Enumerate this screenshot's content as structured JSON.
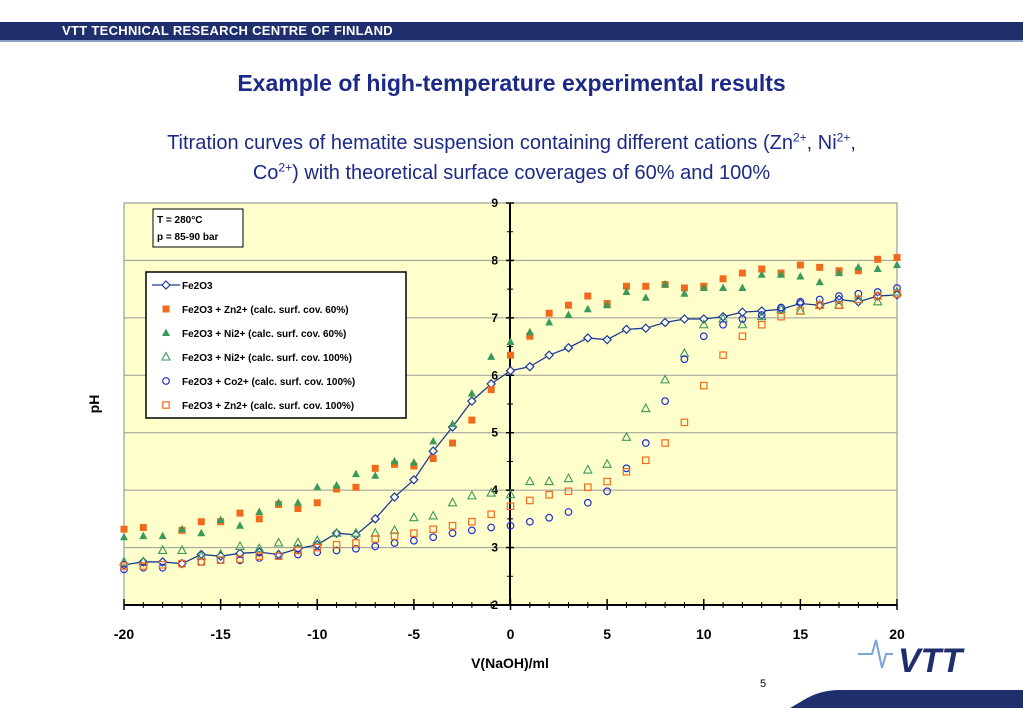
{
  "header": {
    "organization": "VTT TECHNICAL RESEARCH CENTRE OF FINLAND"
  },
  "slide": {
    "title": "Example of high-temperature experimental results",
    "subtitle_parts": [
      "Titration curves of hematite suspension containing different cations (Zn",
      "2+",
      ", Ni",
      "2+",
      ",",
      "Co",
      "2+",
      ") with theoretical  surface coverages of 60% and 100%"
    ],
    "page_number": "5",
    "logo_text": "VTT"
  },
  "chart_data": {
    "type": "scatter",
    "xlabel": "V(NaOH)/ml",
    "ylabel": "pH",
    "xlim": [
      -20,
      20
    ],
    "ylim": [
      2,
      9
    ],
    "xticks": [
      "-20",
      "-15",
      "-10",
      "-5",
      "0",
      "5",
      "10",
      "15",
      "20"
    ],
    "yticks": [
      "2",
      "3",
      "4",
      "5",
      "6",
      "7",
      "8",
      "9"
    ],
    "grid": "horizontal",
    "plot_background": "#ffffcc",
    "annotation_lines": [
      "T = 280°C",
      "p = 85-90 bar"
    ],
    "legend_position": "upper-left",
    "series": [
      {
        "name": "Fe2O3",
        "marker": "diamond-open-line",
        "color": "#1f3a93",
        "x": [
          -20,
          -19,
          -18,
          -17,
          -16,
          -15,
          -14,
          -13,
          -12,
          -11,
          -10,
          -9,
          -8,
          -7,
          -6,
          -5,
          -4,
          -3,
          -2,
          -1,
          0,
          1,
          2,
          3,
          4,
          5,
          6,
          7,
          8,
          9,
          10,
          11,
          12,
          13,
          14,
          15,
          16,
          17,
          18,
          19,
          20
        ],
        "y": [
          2.7,
          2.75,
          2.75,
          2.72,
          2.88,
          2.85,
          2.9,
          2.92,
          2.88,
          2.98,
          3.05,
          3.25,
          3.22,
          3.5,
          3.88,
          4.18,
          4.68,
          5.1,
          5.55,
          5.85,
          6.08,
          6.15,
          6.35,
          6.48,
          6.65,
          6.62,
          6.8,
          6.82,
          6.92,
          6.98,
          6.98,
          7.02,
          7.1,
          7.12,
          7.15,
          7.25,
          7.22,
          7.32,
          7.28,
          7.38,
          7.4
        ]
      },
      {
        "name": "Fe2O3 + Zn2+ (calc. surf. cov. 60%)",
        "marker": "square-filled",
        "color": "#f26b1d",
        "x": [
          -20,
          -19,
          -17,
          -16,
          -15,
          -14,
          -13,
          -12,
          -11,
          -10,
          -9,
          -8,
          -7,
          -6,
          -5,
          -4,
          -3,
          -2,
          -1,
          0,
          1,
          2,
          3,
          4,
          5,
          6,
          7,
          8,
          9,
          10,
          11,
          12,
          13,
          14,
          15,
          16,
          17,
          18,
          19,
          20
        ],
        "y": [
          3.32,
          3.35,
          3.3,
          3.45,
          3.45,
          3.6,
          3.5,
          3.75,
          3.68,
          3.78,
          4.02,
          4.05,
          4.38,
          4.45,
          4.42,
          4.55,
          4.82,
          5.22,
          5.75,
          6.35,
          6.68,
          7.08,
          7.22,
          7.38,
          7.25,
          7.55,
          7.55,
          7.58,
          7.52,
          7.55,
          7.68,
          7.78,
          7.85,
          7.78,
          7.92,
          7.88,
          7.82,
          7.82,
          8.02,
          8.05
        ]
      },
      {
        "name": "Fe2O3 + Ni2+ (calc. surf. cov. 60%)",
        "marker": "triangle-filled",
        "color": "#3a9a5b",
        "x": [
          -20,
          -19,
          -18,
          -17,
          -16,
          -15,
          -14,
          -13,
          -12,
          -11,
          -10,
          -9,
          -8,
          -7,
          -6,
          -5,
          -4,
          -3,
          -2,
          -1,
          0,
          1,
          2,
          3,
          4,
          5,
          6,
          7,
          8,
          9,
          10,
          11,
          12,
          13,
          14,
          15,
          16,
          17,
          18,
          19,
          20
        ],
        "y": [
          3.18,
          3.2,
          3.2,
          3.32,
          3.25,
          3.48,
          3.38,
          3.62,
          3.78,
          3.78,
          4.05,
          4.08,
          4.28,
          4.25,
          4.5,
          4.48,
          4.85,
          5.15,
          5.68,
          6.32,
          6.58,
          6.75,
          6.92,
          7.05,
          7.15,
          7.22,
          7.45,
          7.35,
          7.58,
          7.42,
          7.52,
          7.52,
          7.52,
          7.75,
          7.75,
          7.72,
          7.62,
          7.78,
          7.88,
          7.85,
          7.92
        ]
      },
      {
        "name": "Fe2O3 + Ni2+ (calc. surf. cov. 100%)",
        "marker": "triangle-open",
        "color": "#3a9a5b",
        "x": [
          -20,
          -19,
          -18,
          -17,
          -16,
          -15,
          -14,
          -13,
          -12,
          -11,
          -10,
          -9,
          -8,
          -7,
          -6,
          -5,
          -4,
          -3,
          -2,
          -1,
          0,
          1,
          2,
          3,
          4,
          5,
          6,
          7,
          8,
          9,
          10,
          11,
          12,
          13,
          14,
          15,
          16,
          17,
          18,
          19,
          20
        ],
        "y": [
          2.75,
          2.75,
          2.95,
          2.95,
          2.85,
          2.88,
          3.02,
          2.98,
          3.08,
          3.08,
          3.12,
          3.25,
          3.25,
          3.25,
          3.3,
          3.52,
          3.55,
          3.78,
          3.9,
          3.95,
          3.92,
          4.15,
          4.15,
          4.2,
          4.35,
          4.45,
          4.92,
          5.42,
          5.92,
          6.38,
          6.88,
          6.98,
          6.88,
          7.02,
          7.15,
          7.12,
          7.22,
          7.22,
          7.32,
          7.28,
          7.45
        ]
      },
      {
        "name": "Fe2O3 + Co2+ (calc. surf. cov. 100%)",
        "marker": "circle-open",
        "color": "#1f2fd0",
        "x": [
          -20,
          -19,
          -18,
          -17,
          -16,
          -15,
          -14,
          -13,
          -12,
          -11,
          -10,
          -9,
          -8,
          -7,
          -6,
          -5,
          -4,
          -3,
          -2,
          -1,
          0,
          1,
          2,
          3,
          4,
          5,
          6,
          7,
          8,
          9,
          10,
          11,
          12,
          13,
          14,
          15,
          16,
          17,
          18,
          19,
          20
        ],
        "y": [
          2.62,
          2.65,
          2.65,
          2.72,
          2.75,
          2.78,
          2.78,
          2.82,
          2.85,
          2.88,
          2.92,
          2.95,
          2.98,
          3.02,
          3.08,
          3.12,
          3.18,
          3.25,
          3.3,
          3.35,
          3.38,
          3.45,
          3.52,
          3.62,
          3.78,
          3.98,
          4.38,
          4.82,
          5.55,
          6.28,
          6.68,
          6.88,
          6.98,
          7.05,
          7.18,
          7.28,
          7.32,
          7.38,
          7.42,
          7.45,
          7.52
        ]
      },
      {
        "name": "Fe2O3 + Zn2+ (calc. surf. cov. 100%)",
        "marker": "square-open",
        "color": "#f26b1d",
        "x": [
          -20,
          -19,
          -18,
          -17,
          -16,
          -15,
          -14,
          -13,
          -12,
          -11,
          -10,
          -9,
          -8,
          -7,
          -6,
          -5,
          -4,
          -3,
          -2,
          -1,
          0,
          1,
          2,
          3,
          4,
          5,
          6,
          7,
          8,
          9,
          10,
          11,
          12,
          13,
          14,
          15,
          16,
          17,
          18,
          19,
          20
        ],
        "y": [
          2.68,
          2.68,
          2.7,
          2.72,
          2.75,
          2.78,
          2.8,
          2.85,
          2.85,
          2.95,
          3.0,
          3.05,
          3.08,
          3.15,
          3.2,
          3.25,
          3.32,
          3.38,
          3.45,
          3.58,
          3.72,
          3.82,
          3.92,
          3.98,
          4.05,
          4.15,
          4.32,
          4.52,
          4.82,
          5.18,
          5.82,
          6.35,
          6.68,
          6.88,
          7.02,
          7.12,
          7.22,
          7.22,
          7.32,
          7.38,
          7.42
        ]
      }
    ]
  }
}
